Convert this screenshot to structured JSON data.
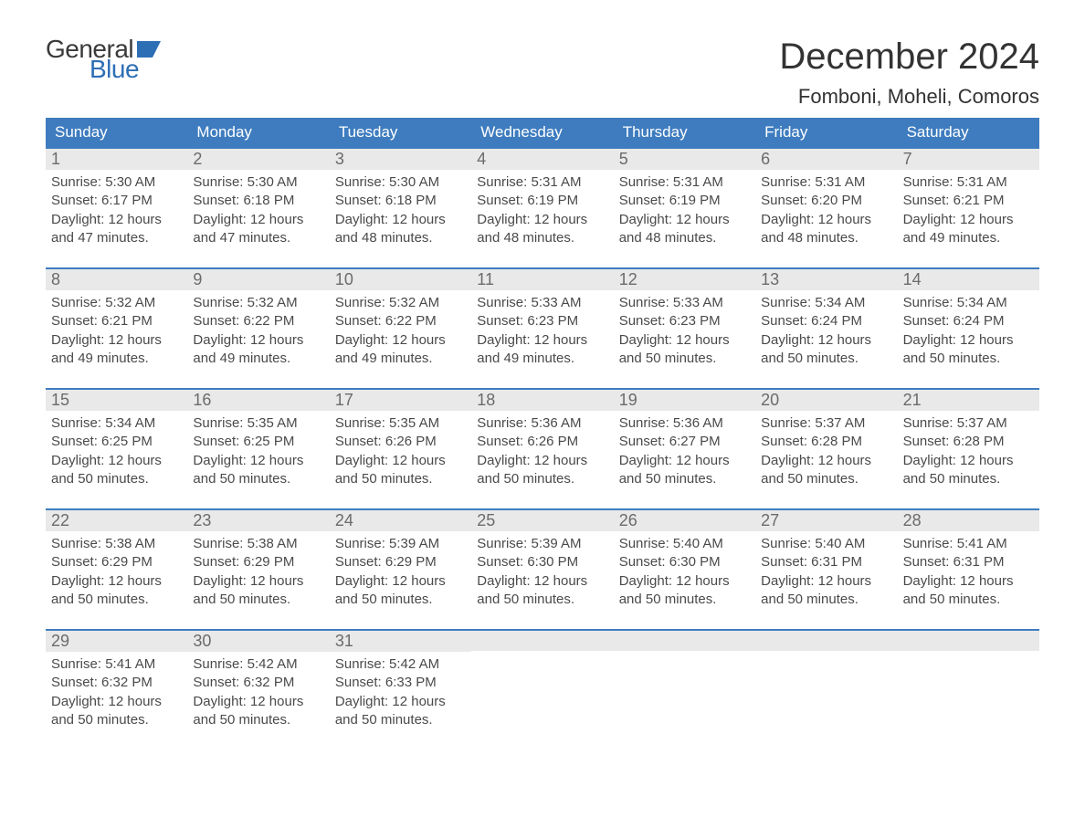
{
  "logo": {
    "general": "General",
    "blue": "Blue",
    "flag_color": "#2d6fb5"
  },
  "header": {
    "month_title": "December 2024",
    "location": "Fomboni, Moheli, Comoros"
  },
  "colors": {
    "header_bg": "#3e7cbf",
    "header_text": "#ffffff",
    "daynum_bg": "#e9e9e9",
    "daynum_border": "#3e7cbf",
    "daynum_text": "#6b6b6b",
    "body_text": "#4a4a4a",
    "page_bg": "#ffffff",
    "title_text": "#333333"
  },
  "calendar": {
    "type": "table",
    "weekdays": [
      "Sunday",
      "Monday",
      "Tuesday",
      "Wednesday",
      "Thursday",
      "Friday",
      "Saturday"
    ],
    "weeks": [
      [
        {
          "n": "1",
          "sunrise": "Sunrise: 5:30 AM",
          "sunset": "Sunset: 6:17 PM",
          "d1": "Daylight: 12 hours",
          "d2": "and 47 minutes."
        },
        {
          "n": "2",
          "sunrise": "Sunrise: 5:30 AM",
          "sunset": "Sunset: 6:18 PM",
          "d1": "Daylight: 12 hours",
          "d2": "and 47 minutes."
        },
        {
          "n": "3",
          "sunrise": "Sunrise: 5:30 AM",
          "sunset": "Sunset: 6:18 PM",
          "d1": "Daylight: 12 hours",
          "d2": "and 48 minutes."
        },
        {
          "n": "4",
          "sunrise": "Sunrise: 5:31 AM",
          "sunset": "Sunset: 6:19 PM",
          "d1": "Daylight: 12 hours",
          "d2": "and 48 minutes."
        },
        {
          "n": "5",
          "sunrise": "Sunrise: 5:31 AM",
          "sunset": "Sunset: 6:19 PM",
          "d1": "Daylight: 12 hours",
          "d2": "and 48 minutes."
        },
        {
          "n": "6",
          "sunrise": "Sunrise: 5:31 AM",
          "sunset": "Sunset: 6:20 PM",
          "d1": "Daylight: 12 hours",
          "d2": "and 48 minutes."
        },
        {
          "n": "7",
          "sunrise": "Sunrise: 5:31 AM",
          "sunset": "Sunset: 6:21 PM",
          "d1": "Daylight: 12 hours",
          "d2": "and 49 minutes."
        }
      ],
      [
        {
          "n": "8",
          "sunrise": "Sunrise: 5:32 AM",
          "sunset": "Sunset: 6:21 PM",
          "d1": "Daylight: 12 hours",
          "d2": "and 49 minutes."
        },
        {
          "n": "9",
          "sunrise": "Sunrise: 5:32 AM",
          "sunset": "Sunset: 6:22 PM",
          "d1": "Daylight: 12 hours",
          "d2": "and 49 minutes."
        },
        {
          "n": "10",
          "sunrise": "Sunrise: 5:32 AM",
          "sunset": "Sunset: 6:22 PM",
          "d1": "Daylight: 12 hours",
          "d2": "and 49 minutes."
        },
        {
          "n": "11",
          "sunrise": "Sunrise: 5:33 AM",
          "sunset": "Sunset: 6:23 PM",
          "d1": "Daylight: 12 hours",
          "d2": "and 49 minutes."
        },
        {
          "n": "12",
          "sunrise": "Sunrise: 5:33 AM",
          "sunset": "Sunset: 6:23 PM",
          "d1": "Daylight: 12 hours",
          "d2": "and 50 minutes."
        },
        {
          "n": "13",
          "sunrise": "Sunrise: 5:34 AM",
          "sunset": "Sunset: 6:24 PM",
          "d1": "Daylight: 12 hours",
          "d2": "and 50 minutes."
        },
        {
          "n": "14",
          "sunrise": "Sunrise: 5:34 AM",
          "sunset": "Sunset: 6:24 PM",
          "d1": "Daylight: 12 hours",
          "d2": "and 50 minutes."
        }
      ],
      [
        {
          "n": "15",
          "sunrise": "Sunrise: 5:34 AM",
          "sunset": "Sunset: 6:25 PM",
          "d1": "Daylight: 12 hours",
          "d2": "and 50 minutes."
        },
        {
          "n": "16",
          "sunrise": "Sunrise: 5:35 AM",
          "sunset": "Sunset: 6:25 PM",
          "d1": "Daylight: 12 hours",
          "d2": "and 50 minutes."
        },
        {
          "n": "17",
          "sunrise": "Sunrise: 5:35 AM",
          "sunset": "Sunset: 6:26 PM",
          "d1": "Daylight: 12 hours",
          "d2": "and 50 minutes."
        },
        {
          "n": "18",
          "sunrise": "Sunrise: 5:36 AM",
          "sunset": "Sunset: 6:26 PM",
          "d1": "Daylight: 12 hours",
          "d2": "and 50 minutes."
        },
        {
          "n": "19",
          "sunrise": "Sunrise: 5:36 AM",
          "sunset": "Sunset: 6:27 PM",
          "d1": "Daylight: 12 hours",
          "d2": "and 50 minutes."
        },
        {
          "n": "20",
          "sunrise": "Sunrise: 5:37 AM",
          "sunset": "Sunset: 6:28 PM",
          "d1": "Daylight: 12 hours",
          "d2": "and 50 minutes."
        },
        {
          "n": "21",
          "sunrise": "Sunrise: 5:37 AM",
          "sunset": "Sunset: 6:28 PM",
          "d1": "Daylight: 12 hours",
          "d2": "and 50 minutes."
        }
      ],
      [
        {
          "n": "22",
          "sunrise": "Sunrise: 5:38 AM",
          "sunset": "Sunset: 6:29 PM",
          "d1": "Daylight: 12 hours",
          "d2": "and 50 minutes."
        },
        {
          "n": "23",
          "sunrise": "Sunrise: 5:38 AM",
          "sunset": "Sunset: 6:29 PM",
          "d1": "Daylight: 12 hours",
          "d2": "and 50 minutes."
        },
        {
          "n": "24",
          "sunrise": "Sunrise: 5:39 AM",
          "sunset": "Sunset: 6:29 PM",
          "d1": "Daylight: 12 hours",
          "d2": "and 50 minutes."
        },
        {
          "n": "25",
          "sunrise": "Sunrise: 5:39 AM",
          "sunset": "Sunset: 6:30 PM",
          "d1": "Daylight: 12 hours",
          "d2": "and 50 minutes."
        },
        {
          "n": "26",
          "sunrise": "Sunrise: 5:40 AM",
          "sunset": "Sunset: 6:30 PM",
          "d1": "Daylight: 12 hours",
          "d2": "and 50 minutes."
        },
        {
          "n": "27",
          "sunrise": "Sunrise: 5:40 AM",
          "sunset": "Sunset: 6:31 PM",
          "d1": "Daylight: 12 hours",
          "d2": "and 50 minutes."
        },
        {
          "n": "28",
          "sunrise": "Sunrise: 5:41 AM",
          "sunset": "Sunset: 6:31 PM",
          "d1": "Daylight: 12 hours",
          "d2": "and 50 minutes."
        }
      ],
      [
        {
          "n": "29",
          "sunrise": "Sunrise: 5:41 AM",
          "sunset": "Sunset: 6:32 PM",
          "d1": "Daylight: 12 hours",
          "d2": "and 50 minutes."
        },
        {
          "n": "30",
          "sunrise": "Sunrise: 5:42 AM",
          "sunset": "Sunset: 6:32 PM",
          "d1": "Daylight: 12 hours",
          "d2": "and 50 minutes."
        },
        {
          "n": "31",
          "sunrise": "Sunrise: 5:42 AM",
          "sunset": "Sunset: 6:33 PM",
          "d1": "Daylight: 12 hours",
          "d2": "and 50 minutes."
        },
        null,
        null,
        null,
        null
      ]
    ]
  }
}
